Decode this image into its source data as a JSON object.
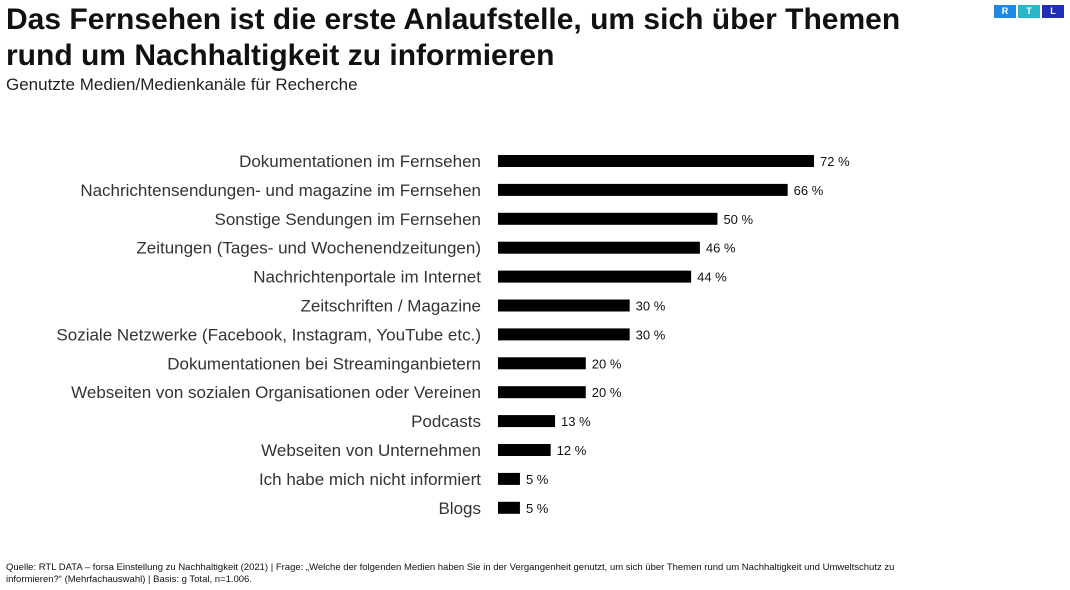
{
  "header": {
    "title": "Das Fernsehen ist die erste Anlaufstelle, um sich über Themen rund um Nachhaltigkeit zu informieren",
    "subtitle": "Genutzte Medien/Medienkanäle für Recherche"
  },
  "logo": {
    "letters": [
      "R",
      "T",
      "L"
    ],
    "colors": [
      "#1e88e5",
      "#29b6c9",
      "#1f2fb8"
    ]
  },
  "chart_data": {
    "type": "bar",
    "orientation": "horizontal",
    "bar_color": "#000000",
    "categories": [
      "Dokumentationen im Fernsehen",
      "Nachrichtensendungen- und magazine im Fernsehen",
      "Sonstige Sendungen im Fernsehen",
      "Zeitungen (Tages- und Wochenendzeitungen)",
      "Nachrichtenportale im Internet",
      "Zeitschriften / Magazine",
      "Soziale Netzwerke (Facebook, Instagram, YouTube etc.)",
      "Dokumentationen bei Streaminganbietern",
      "Webseiten von sozialen Organisationen oder Vereinen",
      "Podcasts",
      "Webseiten von Unternehmen",
      "Ich habe mich nicht informiert",
      "Blogs"
    ],
    "values": [
      72,
      66,
      50,
      46,
      44,
      30,
      30,
      20,
      20,
      13,
      12,
      5,
      5
    ],
    "value_labels": [
      "72 %",
      "66 %",
      "50 %",
      "46 %",
      "44 %",
      "30 %",
      "30 %",
      "20 %",
      "20 %",
      "13 %",
      "12 %",
      "5 %",
      "5 %"
    ],
    "unit": "%",
    "xlim": [
      0,
      72
    ],
    "grid": false,
    "legend": "none"
  },
  "footer": {
    "source": "Quelle: RTL DATA – forsa Einstellung zu Nachhaltigkeit (2021) | Frage: „Welche der folgenden Medien haben Sie in der Vergangenheit genutzt, um sich über Themen rund um Nachhaltigkeit und Umweltschutz zu informieren?“ (Mehrfachauswahl) | Basis: g Total, n=1.006."
  }
}
